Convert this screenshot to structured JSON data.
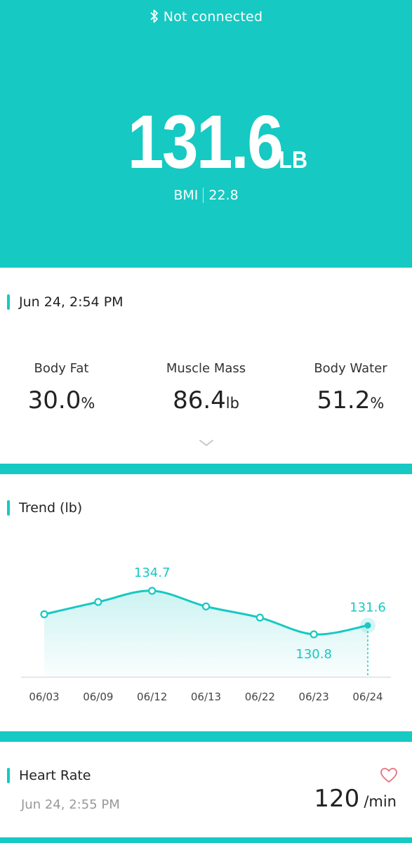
{
  "header": {
    "connection_status": "Not connected",
    "weight": "131.6",
    "weight_unit": "LB",
    "bmi_label": "BMI",
    "bmi_value": "22.8",
    "bg_color": "#16c9c2"
  },
  "measurement": {
    "datetime": "Jun 24, 2:54 PM",
    "metrics": [
      {
        "label": "Body Fat",
        "value": "30.0",
        "unit": "%"
      },
      {
        "label": "Muscle Mass",
        "value": "86.4",
        "unit": "lb"
      },
      {
        "label": "Body Water",
        "value": "51.2",
        "unit": "%"
      }
    ],
    "expand_icon": "chevron-down-icon"
  },
  "trend": {
    "title": "Trend (lb)",
    "chart_data": {
      "type": "area",
      "categories": [
        "06/03",
        "06/09",
        "06/12",
        "06/13",
        "06/22",
        "06/23",
        "06/24"
      ],
      "values": [
        132.6,
        133.7,
        134.7,
        133.3,
        132.3,
        130.8,
        131.6
      ],
      "labels": [
        {
          "category": "06/12",
          "text": "134.7"
        },
        {
          "category": "06/23",
          "text": "130.8"
        },
        {
          "category": "06/24",
          "text": "131.6"
        }
      ],
      "highlighted": "06/24",
      "color": "#16c9c2",
      "grid": false
    }
  },
  "heart_rate": {
    "title": "Heart Rate",
    "datetime": "Jun 24, 2:55 PM",
    "value": "120",
    "unit": "/min",
    "icon": "heart-icon",
    "icon_color": "#e8707e"
  }
}
